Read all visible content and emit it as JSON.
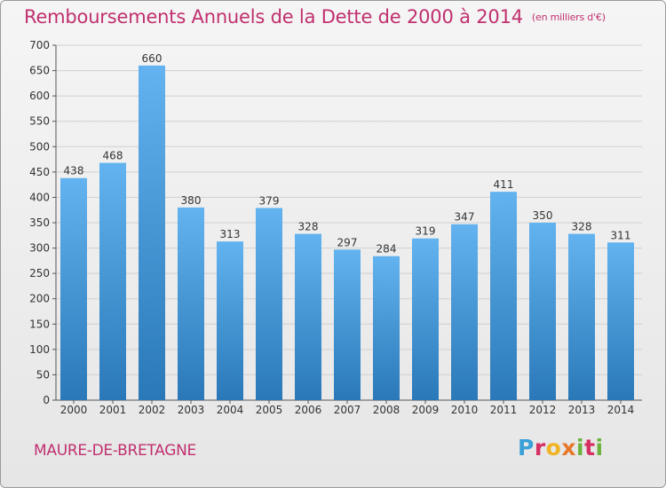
{
  "header": {
    "title": "Remboursements Annuels de la Dette de 2000 à 2014",
    "unit": "(en milliers d'€)"
  },
  "footer": {
    "commune": "MAURE-DE-BRETAGNE",
    "logo": {
      "parts": [
        "P",
        "r",
        "o",
        "x",
        "i",
        "t",
        "i"
      ]
    }
  },
  "colors": {
    "title": "#c0306f",
    "bar_top": "#62b3ef",
    "bar_bottom": "#2a78b8",
    "grid": "#d0d0d0",
    "axis": "#555555"
  },
  "chart_data": {
    "type": "bar",
    "categories": [
      "2000",
      "2001",
      "2002",
      "2003",
      "2004",
      "2005",
      "2006",
      "2007",
      "2008",
      "2009",
      "2010",
      "2011",
      "2012",
      "2013",
      "2014"
    ],
    "values": [
      438,
      468,
      660,
      380,
      313,
      379,
      328,
      297,
      284,
      319,
      347,
      411,
      350,
      328,
      311
    ],
    "ylim": [
      0,
      700
    ],
    "yticks": [
      0,
      50,
      100,
      150,
      200,
      250,
      300,
      350,
      400,
      450,
      500,
      550,
      600,
      650,
      700
    ],
    "grid": true,
    "data_labels": true
  }
}
